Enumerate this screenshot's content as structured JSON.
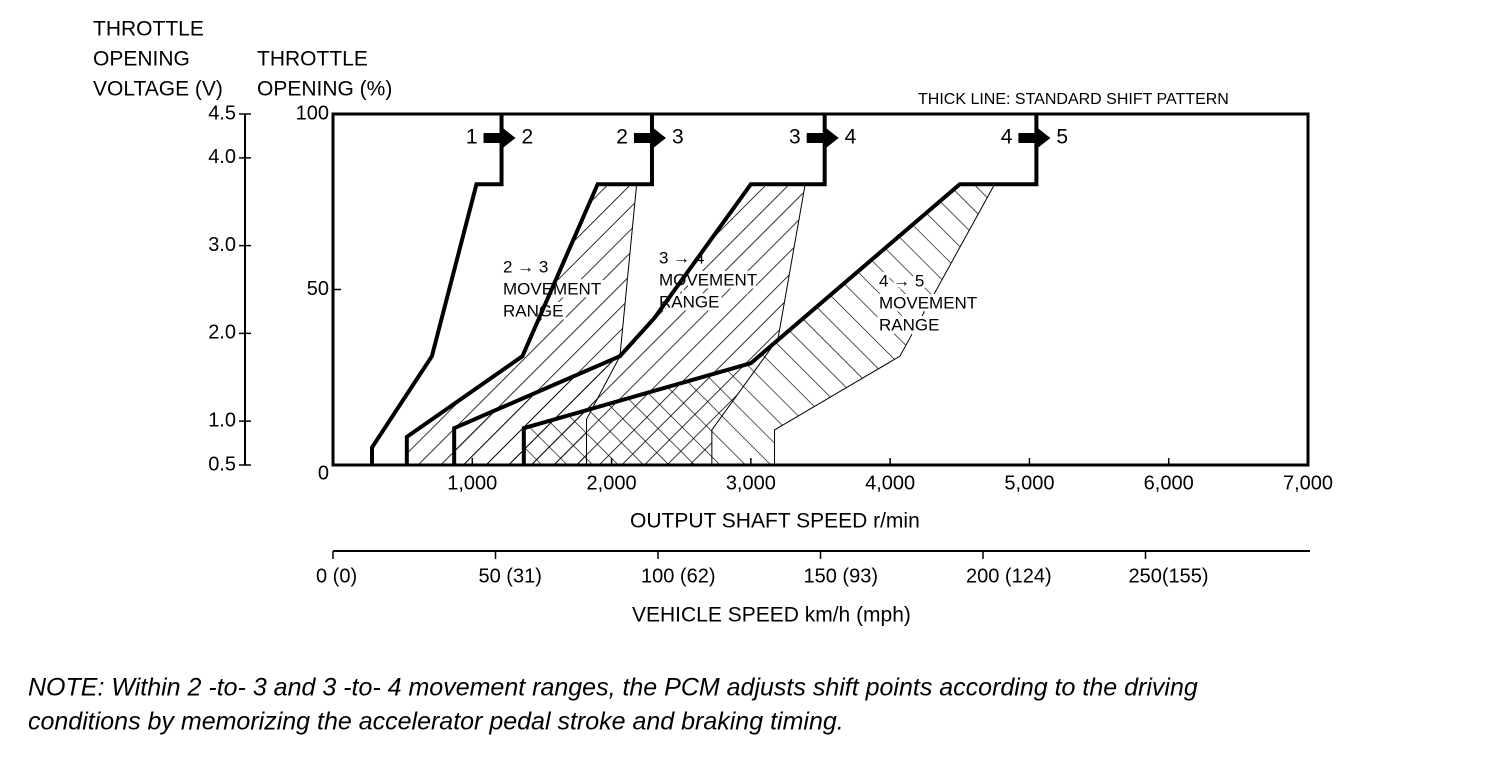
{
  "chart_data": {
    "type": "line",
    "title": "THICK LINE: STANDARD SHIFT PATTERN",
    "y2_label": [
      "THROTTLE",
      "OPENING",
      "VOLTAGE (V)"
    ],
    "y_label": [
      "THROTTLE",
      "OPENING (%)"
    ],
    "x_label": "OUTPUT SHAFT SPEED r/min",
    "x2_label": "VEHICLE SPEED km/h (mph)",
    "xlim": [
      0,
      7000
    ],
    "xticks": [
      {
        "value": 1000,
        "label": "1,000"
      },
      {
        "value": 2000,
        "label": "2,000"
      },
      {
        "value": 3000,
        "label": "3,000"
      },
      {
        "value": 4000,
        "label": "4,000"
      },
      {
        "value": 5000,
        "label": "5,000"
      },
      {
        "value": 6000,
        "label": "6,000"
      },
      {
        "value": 7000,
        "label": "7,000"
      }
    ],
    "ylim": [
      0,
      100
    ],
    "yticks": [
      0,
      50,
      100
    ],
    "y2lim": [
      0.5,
      4.5
    ],
    "y2ticks": [
      0.5,
      {
        "value": 1.0,
        "label": "1.0"
      },
      {
        "value": 2.0,
        "label": "2.0"
      },
      {
        "value": 3.0,
        "label": "3.0"
      },
      {
        "value": 4.0,
        "label": "4.0"
      },
      4.5
    ],
    "x2lim": [
      0,
      300
    ],
    "x2ticks": [
      {
        "value": 0,
        "label": "0 (0)"
      },
      {
        "value": 50,
        "label": "50 (31)"
      },
      {
        "value": 100,
        "label": "100 (62)"
      },
      {
        "value": 150,
        "label": "150 (93)"
      },
      {
        "value": 200,
        "label": "200 (124)"
      },
      {
        "value": 250,
        "label": "250(155)"
      }
    ],
    "series": [
      {
        "labels": [
          "1",
          "2"
        ],
        "color": "#000000",
        "x": [
          280,
          280,
          710,
          1030,
          1210,
          1210
        ],
        "values": [
          0,
          5,
          31,
          80,
          80,
          100
        ]
      },
      {
        "labels": [
          "2",
          "3"
        ],
        "color": "#000000",
        "x": [
          530,
          530,
          1360,
          1900,
          2290,
          2290
        ],
        "values": [
          0,
          8,
          31,
          80,
          80,
          100
        ]
      },
      {
        "labels": [
          "3",
          "4"
        ],
        "color": "#000000",
        "x": [
          870,
          870,
          2060,
          2310,
          3000,
          3530,
          3530
        ],
        "values": [
          0,
          10.5,
          31,
          42,
          80,
          80,
          100
        ]
      },
      {
        "labels": [
          "4",
          "5"
        ],
        "color": "#000000",
        "x": [
          1370,
          1370,
          3000,
          4500,
          5050,
          5050
        ],
        "values": [
          0,
          10.5,
          29,
          80,
          80,
          100
        ]
      }
    ],
    "regions": [
      {
        "label": [
          "2 → 3",
          "MOVEMENT",
          "RANGE"
        ],
        "hatch": "backslash",
        "x": [
          530,
          1360,
          1900,
          2180,
          2060,
          1820,
          1820,
          530
        ],
        "values": [
          8,
          31,
          80,
          80,
          31,
          13,
          0,
          0
        ]
      },
      {
        "label": [
          "3 → 4",
          "MOVEMENT",
          "RANGE"
        ],
        "hatch": "backslash",
        "x": [
          870,
          2060,
          2310,
          3000,
          3390,
          3195,
          2720,
          2720,
          870
        ],
        "values": [
          10.5,
          31,
          42,
          80,
          80,
          36,
          10,
          0,
          0
        ]
      },
      {
        "label": [
          "4 → 5",
          "MOVEMENT",
          "RANGE"
        ],
        "hatch": "slash",
        "x": [
          1370,
          3000,
          4500,
          4750,
          4070,
          3170,
          3170,
          1370
        ],
        "values": [
          10.5,
          29,
          80,
          80,
          31,
          10,
          0,
          0
        ]
      }
    ]
  },
  "note": [
    "NOTE: Within 2 -to- 3 and 3 -to- 4 movement ranges, the PCM adjusts shift points according to the driving",
    "conditions by memorizing the accelerator pedal stroke and braking timing."
  ]
}
